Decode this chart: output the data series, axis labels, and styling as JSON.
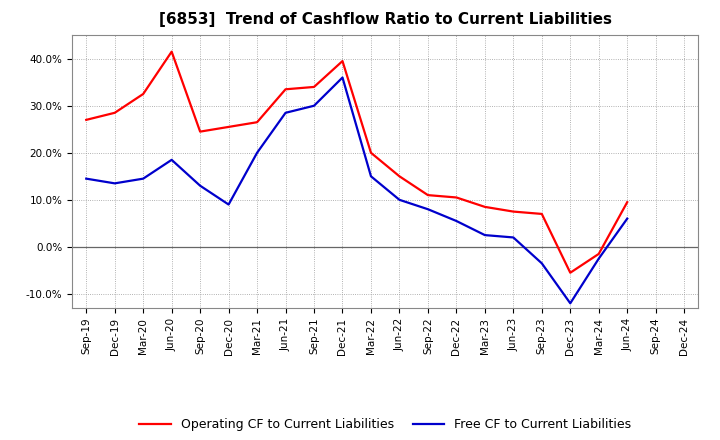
{
  "title": "[6853]  Trend of Cashflow Ratio to Current Liabilities",
  "x_labels": [
    "Sep-19",
    "Dec-19",
    "Mar-20",
    "Jun-20",
    "Sep-20",
    "Dec-20",
    "Mar-21",
    "Jun-21",
    "Sep-21",
    "Dec-21",
    "Mar-22",
    "Jun-22",
    "Sep-22",
    "Dec-22",
    "Mar-23",
    "Jun-23",
    "Sep-23",
    "Dec-23",
    "Mar-24",
    "Jun-24",
    "Sep-24",
    "Dec-24"
  ],
  "operating_cf": [
    27.0,
    28.5,
    32.5,
    41.5,
    24.5,
    25.5,
    26.5,
    33.5,
    34.0,
    39.5,
    20.0,
    15.0,
    11.0,
    10.5,
    8.5,
    7.5,
    7.0,
    -5.5,
    -1.5,
    9.5,
    null,
    null
  ],
  "free_cf": [
    14.5,
    13.5,
    14.5,
    18.5,
    13.0,
    9.0,
    20.0,
    28.5,
    30.0,
    36.0,
    15.0,
    10.0,
    8.0,
    5.5,
    2.5,
    2.0,
    -3.5,
    -12.0,
    -2.5,
    6.0,
    null,
    null
  ],
  "ylim": [
    -13.0,
    45.0
  ],
  "yticks": [
    -10.0,
    0.0,
    10.0,
    20.0,
    30.0,
    40.0
  ],
  "yticklabels": [
    "-10.0%",
    "0.0%",
    "10.0%",
    "20.0%",
    "30.0%",
    "40.0%"
  ],
  "operating_color": "#FF0000",
  "free_color": "#0000CC",
  "background_color": "#FFFFFF",
  "plot_bg_color": "#FFFFFF",
  "grid_color": "#999999",
  "zero_line_color": "#666666",
  "legend_operating": "Operating CF to Current Liabilities",
  "legend_free": "Free CF to Current Liabilities",
  "title_fontsize": 11,
  "tick_fontsize": 7.5,
  "legend_fontsize": 9
}
